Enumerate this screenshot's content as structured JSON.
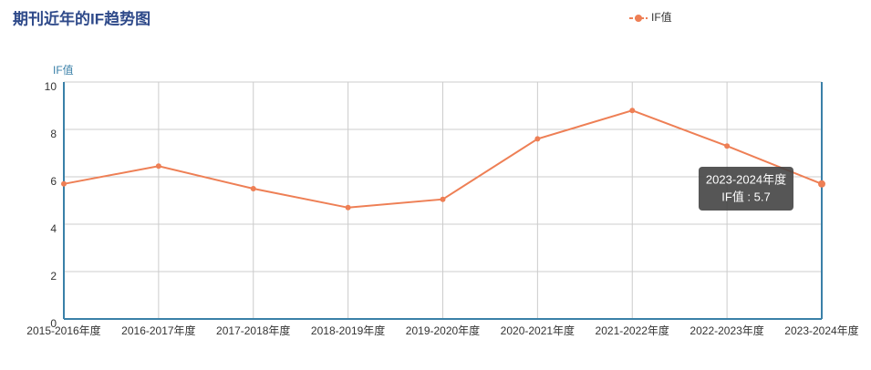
{
  "chart_data": {
    "type": "line",
    "title": "期刊近年的IF趋势图",
    "y_axis_label": "IF值",
    "categories": [
      "2015-2016年度",
      "2016-2017年度",
      "2017-2018年度",
      "2018-2019年度",
      "2019-2020年度",
      "2020-2021年度",
      "2021-2022年度",
      "2022-2023年度",
      "2023-2024年度"
    ],
    "series": [
      {
        "name": "IF值",
        "color": "#ee7f55",
        "values": [
          5.7,
          6.45,
          5.5,
          4.7,
          5.05,
          7.6,
          8.8,
          7.3,
          5.7
        ]
      }
    ],
    "ylim": [
      0,
      10
    ],
    "yticks": [
      0,
      2,
      4,
      6,
      8,
      10
    ],
    "grid": true,
    "legend": "top",
    "tooltip": {
      "title": "2023-2024年度",
      "text": "IF值 : 5.7"
    }
  }
}
